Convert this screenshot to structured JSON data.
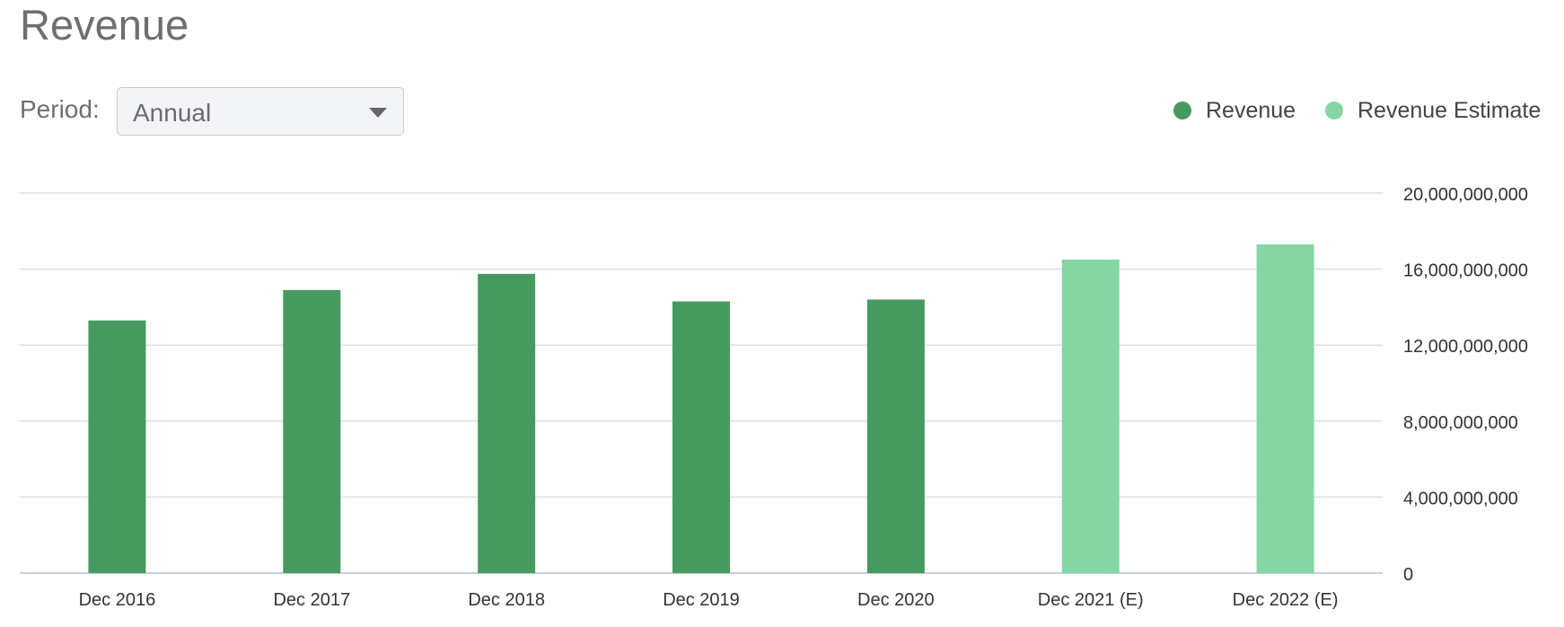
{
  "header": {
    "title": "Revenue"
  },
  "period": {
    "label": "Period:",
    "selected": "Annual"
  },
  "legend": [
    {
      "name": "Revenue",
      "color": "#479a5f"
    },
    {
      "name": "Revenue Estimate",
      "color": "#86d5a5"
    }
  ],
  "chart_data": {
    "type": "bar",
    "categories": [
      "Dec 2016",
      "Dec 2017",
      "Dec 2018",
      "Dec 2019",
      "Dec 2020",
      "Dec 2021 (E)",
      "Dec 2022 (E)"
    ],
    "series": [
      {
        "name": "Revenue",
        "color": "#479a5f",
        "values": [
          13300000000,
          14900000000,
          15750000000,
          14300000000,
          14400000000,
          null,
          null
        ]
      },
      {
        "name": "Revenue Estimate",
        "color": "#86d5a5",
        "values": [
          null,
          null,
          null,
          null,
          null,
          16500000000,
          17300000000
        ]
      }
    ],
    "yticks": [
      0,
      4000000000,
      8000000000,
      12000000000,
      16000000000,
      20000000000
    ],
    "ytick_labels": [
      "0",
      "4,000,000,000",
      "8,000,000,000",
      "12,000,000,000",
      "16,000,000,000",
      "20,000,000,000"
    ],
    "ylim": [
      0,
      20000000000
    ],
    "yaxis_position": "right",
    "grid": true,
    "legend_position": "top-right"
  }
}
